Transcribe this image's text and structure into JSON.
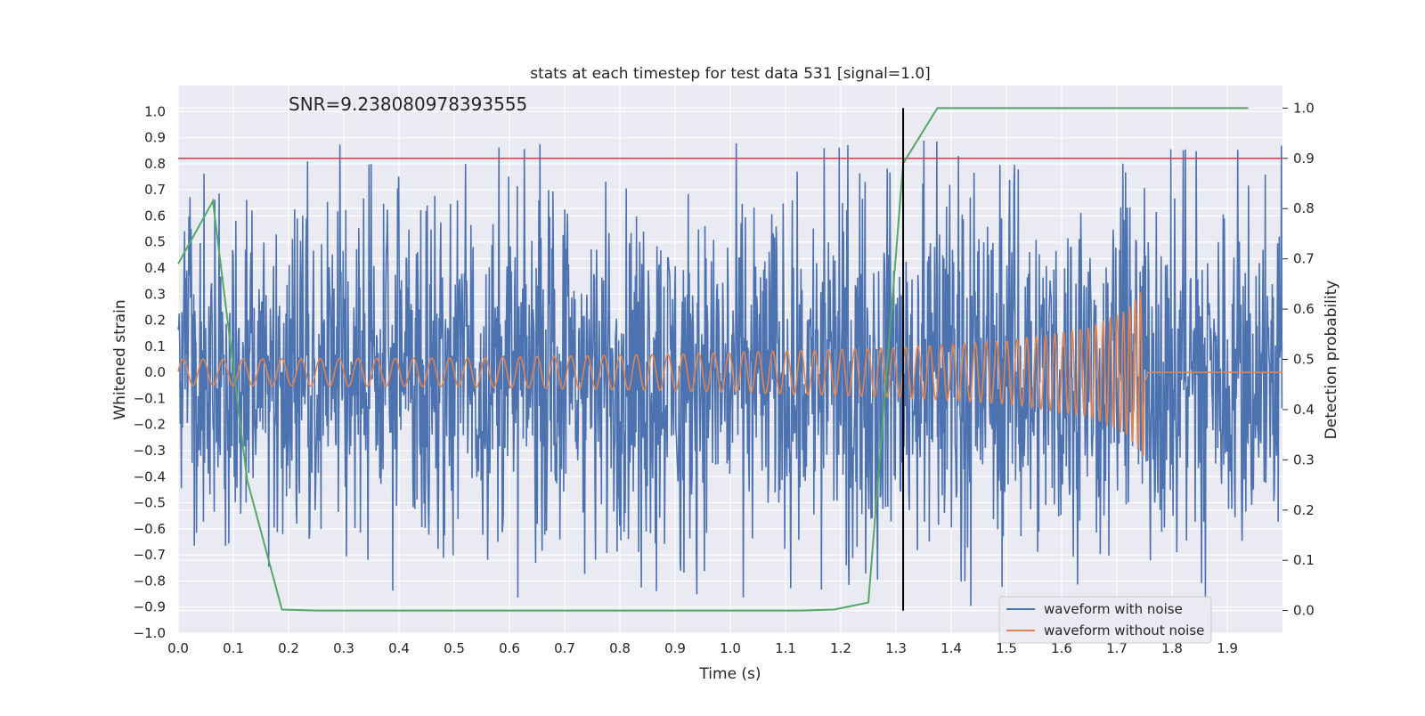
{
  "chart_data": {
    "type": "line",
    "title": "stats at each timestep for test data 531 [signal=1.0]",
    "annotation": "SNR=9.238080978393555",
    "xlabel": "Time (s)",
    "ylabel": "Whitened strain",
    "y2label": "Detection probability",
    "xlim": [
      0.0,
      2.0
    ],
    "ylim": [
      -1.0,
      1.1
    ],
    "y2lim": [
      -0.045,
      1.045
    ],
    "xticks": [
      0.0,
      0.1,
      0.2,
      0.3,
      0.4,
      0.5,
      0.6,
      0.7,
      0.8,
      0.9,
      1.0,
      1.1,
      1.2,
      1.3,
      1.4,
      1.5,
      1.6,
      1.7,
      1.8,
      1.9
    ],
    "xtick_labels": [
      "0.0",
      "0.1",
      "0.2",
      "0.3",
      "0.4",
      "0.5",
      "0.6",
      "0.7",
      "0.8",
      "0.9",
      "1.0",
      "1.1",
      "1.2",
      "1.3",
      "1.4",
      "1.5",
      "1.6",
      "1.7",
      "1.8",
      "1.9"
    ],
    "yticks": [
      1.0,
      0.9,
      0.8,
      0.7,
      0.6,
      0.5,
      0.4,
      0.3,
      0.2,
      0.1,
      0.0,
      -0.1,
      -0.2,
      -0.3,
      -0.4,
      -0.5,
      -0.6,
      -0.7,
      -0.8,
      -0.9,
      -1.0
    ],
    "ytick_labels": [
      "1.0",
      "0.9",
      "0.8",
      "0.7",
      "0.6",
      "0.5",
      "0.4",
      "0.3",
      "0.2",
      "0.1",
      "0.0",
      "−0.1",
      "−0.2",
      "−0.3",
      "−0.4",
      "−0.5",
      "−0.6",
      "−0.7",
      "−0.8",
      "−0.9",
      "−1.0"
    ],
    "y2ticks": [
      1.0,
      0.9,
      0.8,
      0.7,
      0.6,
      0.5,
      0.4,
      0.3,
      0.2,
      0.1,
      0.0
    ],
    "y2tick_labels": [
      "1.0",
      "0.9",
      "0.8",
      "0.7",
      "0.6",
      "0.5",
      "0.4",
      "0.3",
      "0.2",
      "0.1",
      "0.0"
    ],
    "grid": true,
    "legend_position": "bottom-right",
    "colors": {
      "background": "#eaeaf2",
      "grid": "#ffffff",
      "noisy": "#4c72b0",
      "clean": "#dd8452",
      "probability": "#55a868",
      "threshold": "#c44e52",
      "marker": "#000000"
    },
    "series": [
      {
        "name": "waveform with noise",
        "axis": "left",
        "style": "dense noisy oscillation spanning roughly ±0.7 with spikes to ±1.0 over the full time range"
      },
      {
        "name": "waveform without noise",
        "axis": "left",
        "style": "chirp; amplitude ~0.05 at t=0 growing to ~0.33 at t=1.75 with rising frequency, then flat at 0.0",
        "amplitude_points": [
          [
            0.0,
            0.05
          ],
          [
            0.5,
            0.055
          ],
          [
            0.9,
            0.07
          ],
          [
            1.3,
            0.095
          ],
          [
            1.5,
            0.12
          ],
          [
            1.65,
            0.17
          ],
          [
            1.72,
            0.24
          ],
          [
            1.75,
            0.33
          ],
          [
            1.76,
            0.0
          ],
          [
            2.0,
            0.0
          ]
        ]
      },
      {
        "axis": "right",
        "x": [
          0.0,
          0.063,
          0.125,
          0.188,
          0.25,
          0.313,
          0.375,
          0.438,
          0.5,
          0.563,
          0.625,
          0.688,
          0.75,
          0.813,
          0.875,
          0.938,
          1.0,
          1.063,
          1.125,
          1.188,
          1.25,
          1.313,
          1.375,
          1.438,
          1.5,
          1.563,
          1.625,
          1.688,
          1.75,
          1.813,
          1.875,
          1.938
        ],
        "y": [
          0.69,
          0.815,
          0.26,
          0.002,
          0.0,
          0.0,
          0.0,
          0.0,
          0.0,
          0.0,
          0.0,
          0.0,
          0.0,
          0.0,
          0.0,
          0.0,
          0.0,
          0.0,
          0.0,
          0.002,
          0.016,
          0.89,
          1.0,
          1.0,
          1.0,
          1.0,
          1.0,
          1.0,
          1.0,
          1.0,
          1.0,
          1.0
        ]
      }
    ],
    "threshold_line": {
      "axis": "right",
      "y": 0.9
    },
    "vertical_marker": {
      "x": 1.313,
      "y_range": [
        0.0,
        1.0
      ],
      "axis": "right"
    }
  }
}
